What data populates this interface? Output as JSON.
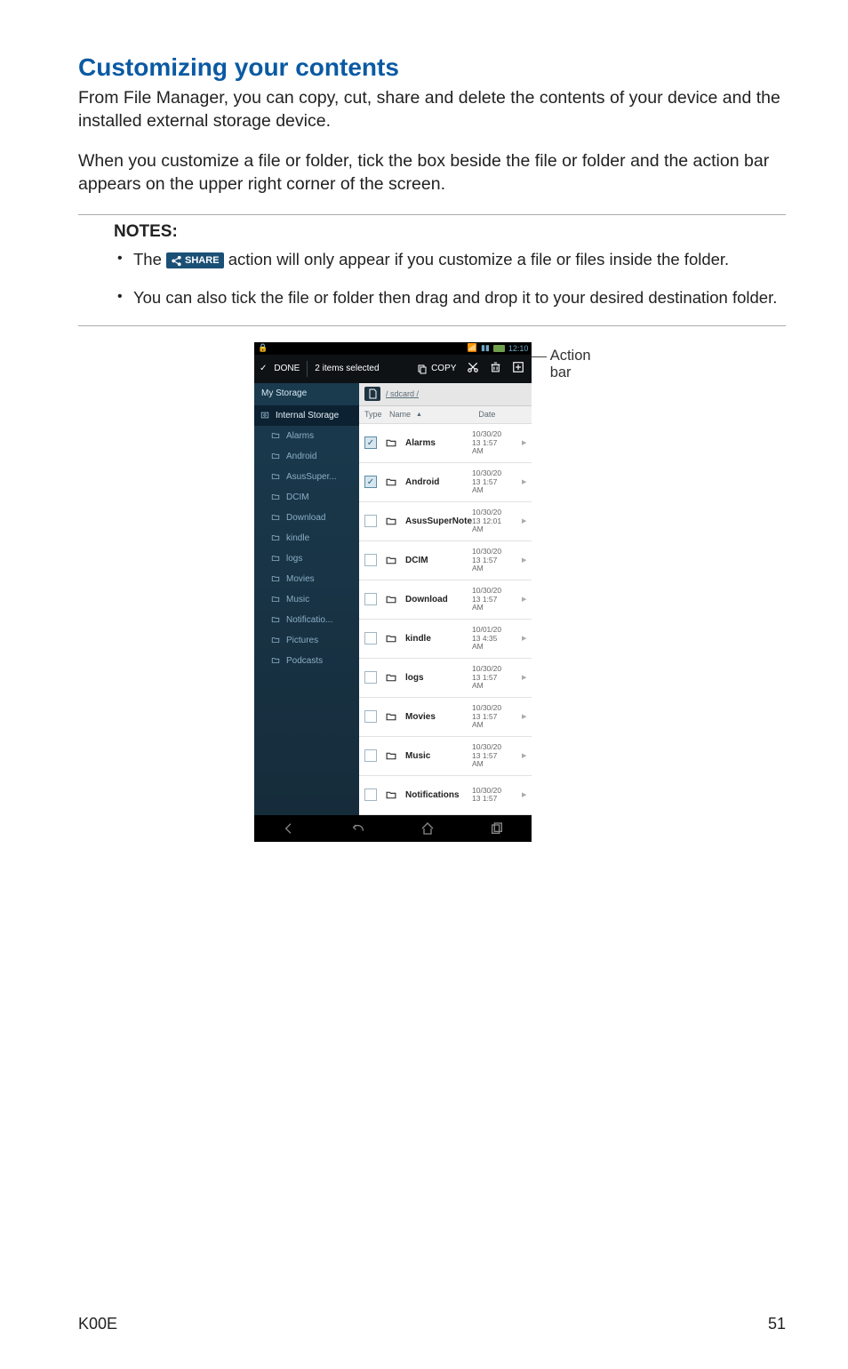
{
  "page": {
    "title": "Customizing your contents",
    "intro": "From File Manager, you can copy, cut, share and delete the contents of your device and the installed external storage device.",
    "para2": "When you customize a file or folder, tick the box beside the file or folder and the action bar appears on the upper right corner of the screen.",
    "notes_heading": "NOTES:",
    "share_label": "SHARE",
    "note1_pre": "The ",
    "note1_post": " action will only appear if you customize a file or files inside the folder.",
    "note2": "You can also tick the file or folder then drag and drop it to your desired destination folder.",
    "footer_model": "K00E",
    "footer_page": "51"
  },
  "screenshot": {
    "status": {
      "time": "12:10"
    },
    "action_bar": {
      "done": "DONE",
      "selected": "2 items selected",
      "copy": "COPY",
      "callout": "Action bar"
    },
    "sidebar": {
      "header": "My Storage",
      "root": "Internal Storage",
      "items": [
        "Alarms",
        "Android",
        "AsusSuper...",
        "DCIM",
        "Download",
        "kindle",
        "logs",
        "Movies",
        "Music",
        "Notificatio...",
        "Pictures",
        "Podcasts"
      ]
    },
    "content": {
      "crumb": "/ sdcard /",
      "headers": {
        "type": "Type",
        "name": "Name",
        "date": "Date"
      },
      "rows": [
        {
          "name": "Alarms",
          "date": "10/30/20\n13 1:57\nAM",
          "checked": true
        },
        {
          "name": "Android",
          "date": "10/30/20\n13 1:57\nAM",
          "checked": true
        },
        {
          "name": "AsusSuperNote",
          "date": "10/30/20\n13 12:01\nAM",
          "checked": false
        },
        {
          "name": "DCIM",
          "date": "10/30/20\n13 1:57\nAM",
          "checked": false
        },
        {
          "name": "Download",
          "date": "10/30/20\n13 1:57\nAM",
          "checked": false
        },
        {
          "name": "kindle",
          "date": "10/01/20\n13 4:35\nAM",
          "checked": false
        },
        {
          "name": "logs",
          "date": "10/30/20\n13 1:57\nAM",
          "checked": false
        },
        {
          "name": "Movies",
          "date": "10/30/20\n13 1:57\nAM",
          "checked": false
        },
        {
          "name": "Music",
          "date": "10/30/20\n13 1:57\nAM",
          "checked": false
        },
        {
          "name": "Notifications",
          "date": "10/30/20\n13 1:57",
          "checked": false
        }
      ]
    }
  }
}
